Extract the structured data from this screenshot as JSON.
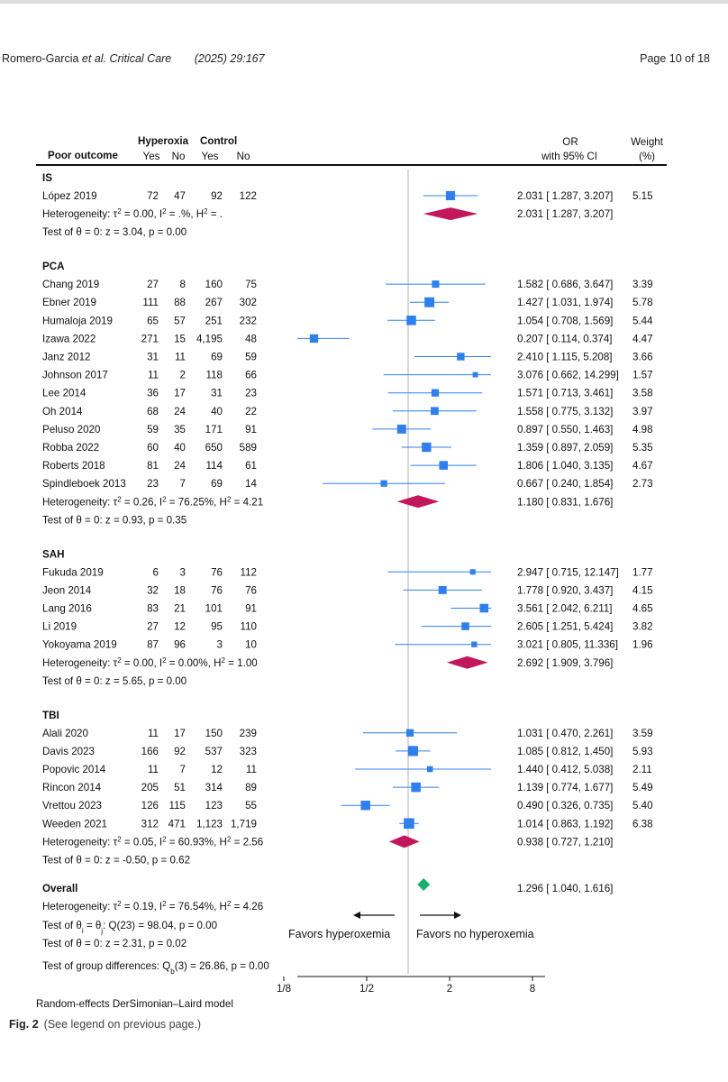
{
  "header": {
    "authors": "Romero-Garcia",
    "authors_suffix": "et al. Critical Care",
    "citation": "(2025) 29:167",
    "page": "Page 10 of 18"
  },
  "plot": {
    "column_headers": {
      "study": "Poor outcome",
      "hyperoxia": "Hyperoxia",
      "control": "Control",
      "yes": "Yes",
      "no": "No",
      "or_line1": "OR",
      "or_line2": "with 95% CI",
      "weight_line1": "Weight",
      "weight_line2": "(%)"
    },
    "groups": [
      {
        "name": "IS",
        "studies": [
          {
            "study": "López 2019",
            "hy": "72",
            "hn": "47",
            "cy": "92",
            "cn": "122",
            "or": 2.031,
            "lo": 1.287,
            "hi": 3.207,
            "ci": "2.031 [ 1.287,   3.207]",
            "weight": "5.15"
          }
        ],
        "pooled": {
          "or": 2.031,
          "lo": 1.287,
          "hi": 3.207,
          "ci": "2.031 [ 1.287,   3.207]"
        },
        "heterogeneity": "Heterogeneity: τ² = 0.00, I² = .%, H² = .",
        "test": "Test of θ = 0: z = 3.04, p = 0.00"
      },
      {
        "name": "PCA",
        "studies": [
          {
            "study": "Chang 2019",
            "hy": "27",
            "hn": "8",
            "cy": "160",
            "cn": "75",
            "or": 1.582,
            "lo": 0.686,
            "hi": 3.647,
            "ci": "1.582 [ 0.686,   3.647]",
            "weight": "3.39"
          },
          {
            "study": "Ebner 2019",
            "hy": "111",
            "hn": "88",
            "cy": "267",
            "cn": "302",
            "or": 1.427,
            "lo": 1.031,
            "hi": 1.974,
            "ci": "1.427 [ 1.031,   1.974]",
            "weight": "5.78"
          },
          {
            "study": "Humaloja 2019",
            "hy": "65",
            "hn": "57",
            "cy": "251",
            "cn": "232",
            "or": 1.054,
            "lo": 0.708,
            "hi": 1.569,
            "ci": "1.054 [ 0.708,   1.569]",
            "weight": "5.44"
          },
          {
            "study": "Izawa 2022",
            "hy": "271",
            "hn": "15",
            "cy": "4,195",
            "cn": "48",
            "or": 0.207,
            "lo": 0.114,
            "hi": 0.374,
            "ci": "0.207 [ 0.114,   0.374]",
            "weight": "4.47"
          },
          {
            "study": "Janz 2012",
            "hy": "31",
            "hn": "11",
            "cy": "69",
            "cn": "59",
            "or": 2.41,
            "lo": 1.115,
            "hi": 5.208,
            "ci": "2.410 [ 1.115,   5.208]",
            "weight": "3.66"
          },
          {
            "study": "Johnson 2017",
            "hy": "11",
            "hn": "2",
            "cy": "118",
            "cn": "66",
            "or": 3.076,
            "lo": 0.662,
            "hi": 14.299,
            "ci": "3.076 [ 0.662, 14.299]",
            "weight": "1.57"
          },
          {
            "study": "Lee 2014",
            "hy": "36",
            "hn": "17",
            "cy": "31",
            "cn": "23",
            "or": 1.571,
            "lo": 0.713,
            "hi": 3.461,
            "ci": "1.571 [ 0.713,   3.461]",
            "weight": "3.58"
          },
          {
            "study": "Oh 2014",
            "hy": "68",
            "hn": "24",
            "cy": "40",
            "cn": "22",
            "or": 1.558,
            "lo": 0.775,
            "hi": 3.132,
            "ci": "1.558 [ 0.775,   3.132]",
            "weight": "3.97"
          },
          {
            "study": "Peluso 2020",
            "hy": "59",
            "hn": "35",
            "cy": "171",
            "cn": "91",
            "or": 0.897,
            "lo": 0.55,
            "hi": 1.463,
            "ci": "0.897 [ 0.550,   1.463]",
            "weight": "4.98"
          },
          {
            "study": "Robba 2022",
            "hy": "60",
            "hn": "40",
            "cy": "650",
            "cn": "589",
            "or": 1.359,
            "lo": 0.897,
            "hi": 2.059,
            "ci": "1.359 [ 0.897,   2.059]",
            "weight": "5.35"
          },
          {
            "study": "Roberts 2018",
            "hy": "81",
            "hn": "24",
            "cy": "114",
            "cn": "61",
            "or": 1.806,
            "lo": 1.04,
            "hi": 3.135,
            "ci": "1.806 [ 1.040,   3.135]",
            "weight": "4.67"
          },
          {
            "study": "Spindleboek 2013",
            "hy": "23",
            "hn": "7",
            "cy": "69",
            "cn": "14",
            "or": 0.667,
            "lo": 0.24,
            "hi": 1.854,
            "ci": "0.667 [ 0.240,   1.854]",
            "weight": "2.73"
          }
        ],
        "pooled": {
          "or": 1.18,
          "lo": 0.831,
          "hi": 1.676,
          "ci": "1.180 [ 0.831,   1.676]"
        },
        "heterogeneity": "Heterogeneity: τ² = 0.26, I² = 76.25%, H² = 4.21",
        "test": "Test of θ = 0: z = 0.93, p = 0.35"
      },
      {
        "name": "SAH",
        "studies": [
          {
            "study": "Fukuda 2019",
            "hy": "6",
            "hn": "3",
            "cy": "76",
            "cn": "112",
            "or": 2.947,
            "lo": 0.715,
            "hi": 12.147,
            "ci": "2.947 [ 0.715, 12.147]",
            "weight": "1.77"
          },
          {
            "study": "Jeon 2014",
            "hy": "32",
            "hn": "18",
            "cy": "76",
            "cn": "76",
            "or": 1.778,
            "lo": 0.92,
            "hi": 3.437,
            "ci": "1.778 [ 0.920,   3.437]",
            "weight": "4.15"
          },
          {
            "study": "Lang 2016",
            "hy": "83",
            "hn": "21",
            "cy": "101",
            "cn": "91",
            "or": 3.561,
            "lo": 2.042,
            "hi": 6.211,
            "ci": "3.561 [ 2.042,   6.211]",
            "weight": "4.65"
          },
          {
            "study": "Li 2019",
            "hy": "27",
            "hn": "12",
            "cy": "95",
            "cn": "110",
            "or": 2.605,
            "lo": 1.251,
            "hi": 5.424,
            "ci": "2.605 [ 1.251,   5.424]",
            "weight": "3.82"
          },
          {
            "study": "Yokoyama 2019",
            "hy": "87",
            "hn": "96",
            "cy": "3",
            "cn": "10",
            "or": 3.021,
            "lo": 0.805,
            "hi": 11.336,
            "ci": "3.021 [ 0.805, 11.336]",
            "weight": "1.96"
          }
        ],
        "pooled": {
          "or": 2.692,
          "lo": 1.909,
          "hi": 3.796,
          "ci": "2.692 [ 1.909,   3.796]"
        },
        "heterogeneity": "Heterogeneity: τ² = 0.00, I² = 0.00%, H² = 1.00",
        "test": "Test of θ = 0: z = 5.65, p = 0.00"
      },
      {
        "name": "TBI",
        "studies": [
          {
            "study": "Alali 2020",
            "hy": "11",
            "hn": "17",
            "cy": "150",
            "cn": "239",
            "or": 1.031,
            "lo": 0.47,
            "hi": 2.261,
            "ci": "1.031 [ 0.470,   2.261]",
            "weight": "3.59"
          },
          {
            "study": "Davis 2023",
            "hy": "166",
            "hn": "92",
            "cy": "537",
            "cn": "323",
            "or": 1.085,
            "lo": 0.812,
            "hi": 1.45,
            "ci": "1.085 [ 0.812,   1.450]",
            "weight": "5.93"
          },
          {
            "study": "Popovic 2014",
            "hy": "11",
            "hn": "7",
            "cy": "12",
            "cn": "11",
            "or": 1.44,
            "lo": 0.412,
            "hi": 5.038,
            "ci": "1.440 [ 0.412,   5.038]",
            "weight": "2.11"
          },
          {
            "study": "Rincon 2014",
            "hy": "205",
            "hn": "51",
            "cy": "314",
            "cn": "89",
            "or": 1.139,
            "lo": 0.774,
            "hi": 1.677,
            "ci": "1.139 [ 0.774,   1.677]",
            "weight": "5.49"
          },
          {
            "study": "Vrettou 2023",
            "hy": "126",
            "hn": "115",
            "cy": "123",
            "cn": "55",
            "or": 0.49,
            "lo": 0.326,
            "hi": 0.735,
            "ci": "0.490 [ 0.326,   0.735]",
            "weight": "5.40"
          },
          {
            "study": "Weeden 2021",
            "hy": "312",
            "hn": "471",
            "cy": "1,123",
            "cn": "1,719",
            "or": 1.014,
            "lo": 0.863,
            "hi": 1.192,
            "ci": "1.014 [ 0.863,   1.192]",
            "weight": "6.38"
          }
        ],
        "pooled": {
          "or": 0.938,
          "lo": 0.727,
          "hi": 1.21,
          "ci": "0.938 [ 0.727,   1.210]"
        },
        "heterogeneity": "Heterogeneity: τ² = 0.05, I² = 60.93%, H² = 2.56",
        "test": "Test of θ = 0: z = -0.50, p = 0.62"
      }
    ],
    "overall": {
      "label": "Overall",
      "or": 1.296,
      "lo": 1.04,
      "hi": 1.616,
      "ci": "1.296 [ 1.040,   1.616]",
      "heterogeneity": "Heterogeneity: τ² = 0.19, I² = 76.54%, H² = 4.26",
      "test_homog": "Test of θᵢ = θⱼ: Q(23) = 98.04, p = 0.00",
      "test": "Test of θ = 0: z = 2.31, p = 0.02",
      "group_diff": "Test of group differences: Qb(3) = 26.86, p = 0.00"
    },
    "favors_left": "Favors hyperoxemia",
    "favors_right": "Favors no hyperoxemia",
    "axis_ticks": [
      {
        "label": "1/8",
        "value": 0.125
      },
      {
        "label": "1/2",
        "value": 0.5
      },
      {
        "label": "2",
        "value": 2
      },
      {
        "label": "8",
        "value": 8
      }
    ],
    "colors": {
      "study": "#2f80ed",
      "subgroup": "#c2185b",
      "overall": "#1aae6f",
      "reference": "#b0b0b0"
    }
  },
  "caption": {
    "model": "Random-effects DerSimonian–Laird model",
    "fig": "Fig. 2",
    "text": "(See legend on previous page.)"
  }
}
